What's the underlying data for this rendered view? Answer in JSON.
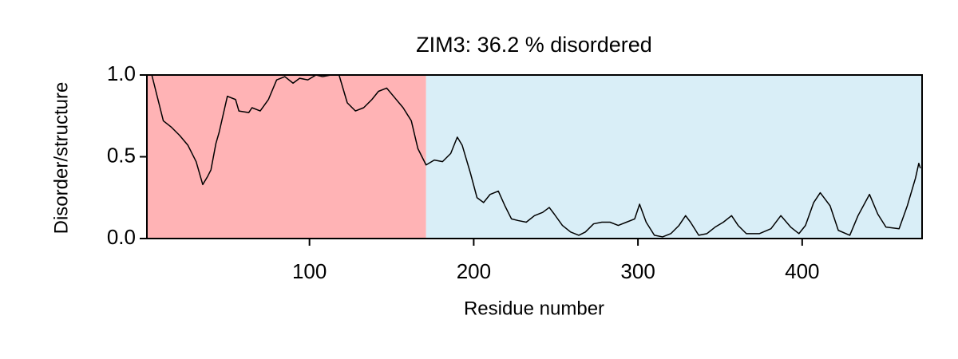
{
  "chart_data": {
    "type": "line",
    "title": "ZIM3: 36.2 % disordered",
    "x_label": "Residue number",
    "y_label": "Disorder/structure",
    "xlim": [
      1,
      473
    ],
    "ylim": [
      0,
      1
    ],
    "xticks": [
      100,
      200,
      300,
      400
    ],
    "yticks": [
      {
        "value": 0,
        "label": "0.0"
      },
      {
        "value": 0.5,
        "label": "0.5"
      },
      {
        "value": 1,
        "label": "1.0"
      }
    ],
    "regions": [
      {
        "start": 1,
        "end": 171,
        "color": "#ffb3b5"
      },
      {
        "start": 171,
        "end": 473,
        "color": "#d9eef7"
      }
    ],
    "x": [
      1,
      4,
      9,
      11,
      16,
      21,
      26,
      31,
      35,
      38,
      40,
      43,
      45,
      50,
      55,
      57,
      63,
      65,
      70,
      75,
      80,
      85,
      90,
      94,
      99,
      104,
      108,
      113,
      118,
      123,
      128,
      133,
      138,
      142,
      147,
      152,
      157,
      162,
      166,
      171,
      176,
      181,
      186,
      190,
      193,
      198,
      202,
      206,
      210,
      215,
      219,
      223,
      227,
      232,
      237,
      242,
      246,
      249,
      254,
      259,
      264,
      268,
      273,
      278,
      283,
      288,
      293,
      298,
      301,
      305,
      310,
      315,
      320,
      325,
      329,
      332,
      337,
      342,
      347,
      352,
      357,
      361,
      366,
      374,
      381,
      387,
      393,
      398,
      402,
      407,
      411,
      417,
      422,
      429,
      434,
      441,
      446,
      451,
      459,
      464,
      469,
      471,
      472
    ],
    "series": [
      {
        "color": "#000000",
        "values": [
          1.0,
          1.0,
          0.8,
          0.72,
          0.68,
          0.63,
          0.57,
          0.47,
          0.33,
          0.38,
          0.42,
          0.58,
          0.65,
          0.87,
          0.85,
          0.78,
          0.77,
          0.8,
          0.78,
          0.85,
          0.97,
          0.99,
          0.95,
          0.98,
          0.97,
          1.0,
          0.99,
          1.0,
          1.0,
          0.83,
          0.78,
          0.8,
          0.85,
          0.9,
          0.92,
          0.86,
          0.8,
          0.72,
          0.55,
          0.45,
          0.48,
          0.47,
          0.52,
          0.62,
          0.57,
          0.4,
          0.25,
          0.22,
          0.27,
          0.29,
          0.2,
          0.12,
          0.11,
          0.1,
          0.14,
          0.16,
          0.19,
          0.15,
          0.08,
          0.04,
          0.02,
          0.04,
          0.09,
          0.1,
          0.1,
          0.08,
          0.1,
          0.12,
          0.21,
          0.1,
          0.02,
          0.01,
          0.03,
          0.08,
          0.14,
          0.1,
          0.02,
          0.03,
          0.07,
          0.1,
          0.14,
          0.08,
          0.03,
          0.03,
          0.06,
          0.14,
          0.07,
          0.03,
          0.08,
          0.22,
          0.28,
          0.2,
          0.05,
          0.02,
          0.14,
          0.27,
          0.15,
          0.07,
          0.06,
          0.2,
          0.37,
          0.46,
          0.43
        ]
      }
    ]
  }
}
